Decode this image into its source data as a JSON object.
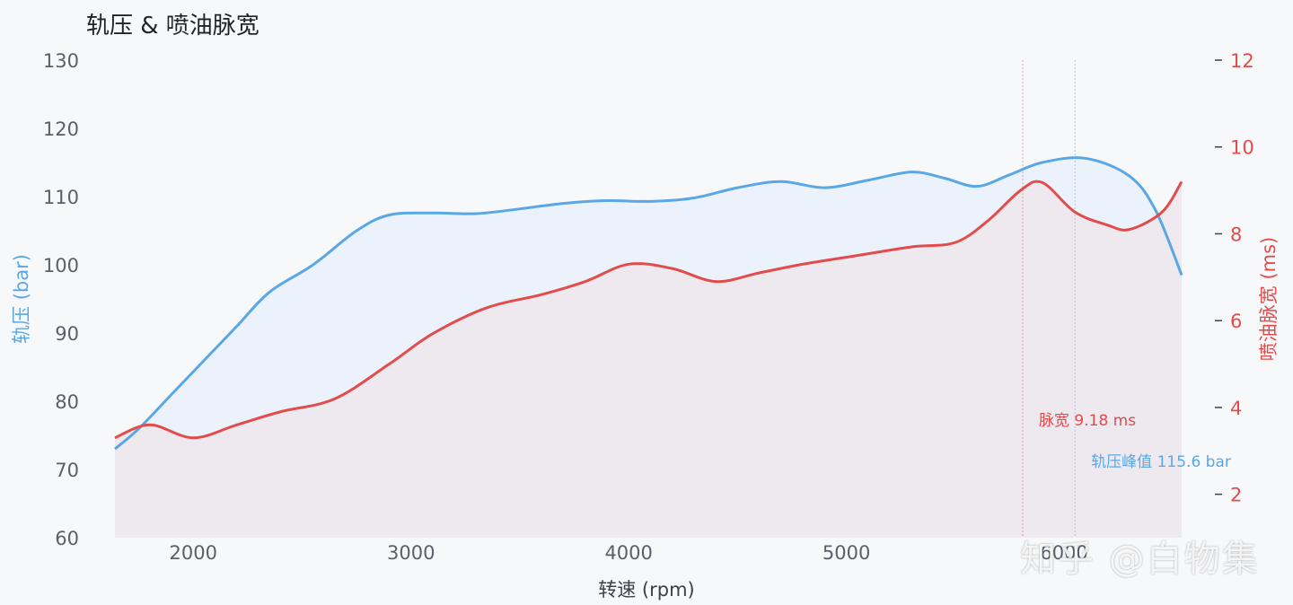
{
  "page": {
    "title": "轨压 & 喷油脉宽",
    "watermark": "知乎 @白物集"
  },
  "colors": {
    "rail_pressure": "#5aa7e6",
    "injection_pulse": "#e24c4b",
    "rail_fill": "#e9f1fb",
    "pulse_fill": "#efe6ec",
    "background": "#f7f8fa"
  },
  "chart_data": {
    "type": "line",
    "title": "轨压 & 喷油脉宽",
    "xlabel": "转速 (rpm)",
    "ylabel_left": "轨压 (bar)",
    "ylabel_right": "喷油脉宽 (ms)",
    "xlim": [
      1640,
      6540
    ],
    "ylim_left": [
      60,
      130
    ],
    "ylim_right": [
      1,
      12
    ],
    "x_ticks": [
      2000,
      3000,
      4000,
      5000,
      6000
    ],
    "x_tick_labels": [
      "2000",
      "3000",
      "4000",
      "5000",
      "6000"
    ],
    "y_left_ticks": [
      60,
      70,
      80,
      90,
      100,
      110,
      120,
      130
    ],
    "y_right_ticks": [
      2,
      4,
      6,
      8,
      10,
      12
    ],
    "grid": false,
    "series": [
      {
        "name": "轨压",
        "axis": "left",
        "x": [
          1640,
          1750,
          1900,
          2050,
          2200,
          2350,
          2550,
          2750,
          2900,
          3100,
          3300,
          3500,
          3700,
          3900,
          4100,
          4300,
          4500,
          4700,
          4900,
          5100,
          5300,
          5450,
          5600,
          5750,
          5900,
          6100,
          6300,
          6420,
          6540
        ],
        "y": [
          73,
          76,
          81,
          86,
          91,
          96,
          100,
          105,
          107.3,
          107.6,
          107.5,
          108.2,
          109,
          109.4,
          109.3,
          109.8,
          111.3,
          112.2,
          111.3,
          112.4,
          113.6,
          112.7,
          111.5,
          113.2,
          115,
          115.6,
          113,
          108,
          98.5
        ]
      },
      {
        "name": "喷油脉宽",
        "axis": "right",
        "x": [
          1640,
          1800,
          2000,
          2200,
          2400,
          2650,
          2900,
          3100,
          3350,
          3600,
          3800,
          4000,
          4200,
          4400,
          4600,
          4800,
          5050,
          5300,
          5500,
          5650,
          5800,
          5900,
          6050,
          6200,
          6300,
          6450,
          6540
        ],
        "y": [
          3.3,
          3.6,
          3.3,
          3.6,
          3.9,
          4.2,
          5.0,
          5.7,
          6.3,
          6.6,
          6.9,
          7.3,
          7.2,
          6.9,
          7.1,
          7.3,
          7.5,
          7.7,
          7.8,
          8.3,
          9.0,
          9.18,
          8.5,
          8.2,
          8.1,
          8.5,
          9.2
        ]
      }
    ],
    "annotations": [
      {
        "series": "轨压",
        "x": 6050,
        "text": "轨压峰值 115.6 bar"
      },
      {
        "series": "喷油脉宽",
        "x": 5810,
        "text": "脉宽 9.18 ms"
      }
    ]
  }
}
